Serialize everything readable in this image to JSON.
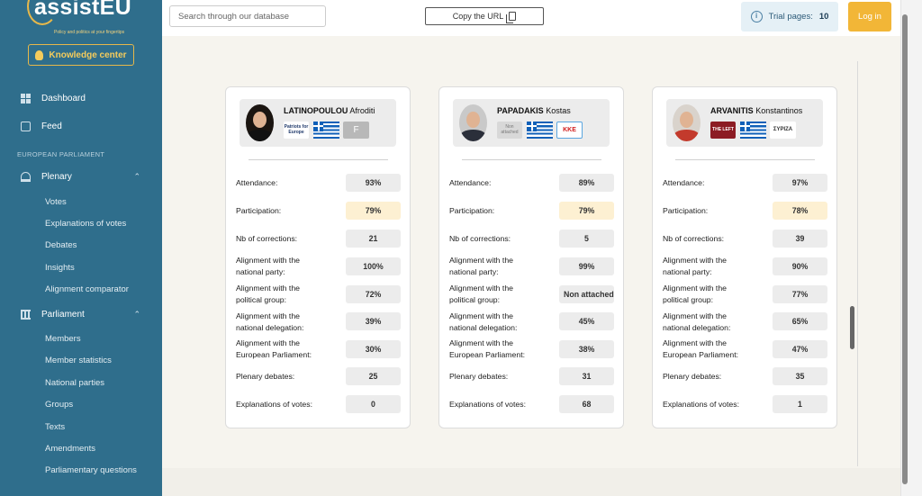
{
  "app": {
    "logo_text": "assistEU",
    "tagline": "Policy and politics at your fingertips",
    "knowledge_center": "Knowledge center"
  },
  "sidebar": {
    "dashboard": "Dashboard",
    "feed": "Feed",
    "section": "EUROPEAN PARLIAMENT",
    "plenary": {
      "label": "Plenary",
      "items": [
        "Votes",
        "Explanations of votes",
        "Debates",
        "Insights",
        "Alignment comparator"
      ]
    },
    "parliament": {
      "label": "Parliament",
      "items": [
        "Members",
        "Member statistics",
        "National parties",
        "Groups",
        "Texts",
        "Amendments",
        "Parliamentary questions"
      ]
    }
  },
  "topbar": {
    "search_placeholder": "Search through our database",
    "copy_url": "Copy the URL",
    "trial_label": "Trial pages:",
    "trial_count": "10",
    "login": "Log in"
  },
  "labels": {
    "attendance": "Attendance:",
    "participation": "Participation:",
    "corrections": "Nb of corrections:",
    "align_party_1": "Alignment with the",
    "align_party_2": "national party:",
    "align_group_1": "Alignment with the",
    "align_group_2": "political group:",
    "align_deleg_1": "Alignment with the",
    "align_deleg_2": "national delegation:",
    "align_ep_1": "Alignment with the",
    "align_ep_2": "European Parliament:",
    "debates": "Plenary debates:",
    "explanations": "Explanations of votes:"
  },
  "meps": [
    {
      "last_name": "LATINOPOULOU",
      "first_name": "Afroditi",
      "group_badge": "Patriots for Europe",
      "party_badge": "F",
      "attendance": "93%",
      "participation": "79%",
      "corrections": "21",
      "align_party": "100%",
      "align_group": "72%",
      "align_deleg": "39%",
      "align_ep": "30%",
      "debates": "25",
      "explanations": "0"
    },
    {
      "last_name": "PAPADAKIS",
      "first_name": "Kostas",
      "group_badge": "Non attached",
      "party_badge": "KKE",
      "attendance": "89%",
      "participation": "79%",
      "corrections": "5",
      "align_party": "99%",
      "align_group": "Non attached",
      "align_deleg": "45%",
      "align_ep": "38%",
      "debates": "31",
      "explanations": "68"
    },
    {
      "last_name": "ARVANITIS",
      "first_name": "Konstantinos",
      "group_badge": "THE LEFT",
      "party_badge": "ΣΥΡΙΖΑ",
      "attendance": "97%",
      "participation": "78%",
      "corrections": "39",
      "align_party": "90%",
      "align_group": "77%",
      "align_deleg": "65%",
      "align_ep": "47%",
      "debates": "35",
      "explanations": "1"
    }
  ]
}
